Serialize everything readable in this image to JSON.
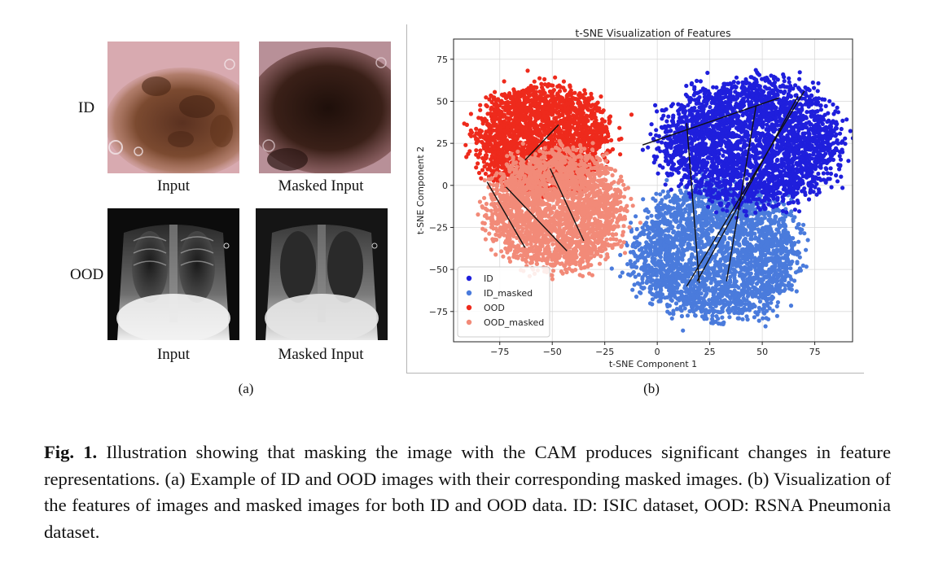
{
  "panel_a": {
    "row_labels": {
      "id": "ID",
      "ood": "OOD"
    },
    "image_labels": {
      "input": "Input",
      "masked": "Masked Input"
    },
    "caption": "(a)"
  },
  "panel_b": {
    "caption": "(b)"
  },
  "figure_caption": {
    "label": "Fig. 1.",
    "text": "Illustration showing that masking the image with the CAM produces significant changes in feature representations. (a) Example of ID and OOD images with their corresponding masked images. (b) Visualization of the features of images and masked images for both ID and OOD data. ID: ISIC dataset, OOD: RSNA Pneumonia dataset."
  },
  "chart_data": {
    "type": "scatter",
    "title": "t-SNE Visualization of Features",
    "xlabel": "t-SNE Component 1",
    "ylabel": "t-SNE Component 2",
    "xlim": [
      -97,
      93
    ],
    "ylim": [
      -93,
      87
    ],
    "xticks": [
      -75,
      -50,
      -25,
      0,
      25,
      50,
      75
    ],
    "yticks": [
      -75,
      -50,
      -25,
      0,
      25,
      50,
      75
    ],
    "grid": true,
    "legend_position": "lower-left",
    "series": [
      {
        "name": "ID",
        "color": "#1f1fdc"
      },
      {
        "name": "ID_masked",
        "color": "#4a7bdc"
      },
      {
        "name": "OOD",
        "color": "#ee2a1c"
      },
      {
        "name": "OOD_masked",
        "color": "#f28a78"
      }
    ],
    "clusters": [
      {
        "series": "ID_masked",
        "cx": 28,
        "cy": -40,
        "rx": 42,
        "ry": 42,
        "n": 2600
      },
      {
        "series": "ID",
        "cx": 45,
        "cy": 25,
        "rx": 45,
        "ry": 40,
        "n": 2800
      },
      {
        "series": "OOD",
        "cx": -55,
        "cy": 28,
        "rx": 33,
        "ry": 33,
        "n": 2200
      },
      {
        "series": "OOD_masked",
        "cx": -48,
        "cy": -15,
        "rx": 34,
        "ry": 38,
        "n": 2400
      }
    ],
    "connector_lines": [
      {
        "x1": -63,
        "y1": 15,
        "x2": -47,
        "y2": 36
      },
      {
        "x1": -81,
        "y1": 2,
        "x2": -63,
        "y2": -37
      },
      {
        "x1": -72,
        "y1": -1,
        "x2": -43,
        "y2": -39
      },
      {
        "x1": -51,
        "y1": 10,
        "x2": -35,
        "y2": -33
      },
      {
        "x1": -7,
        "y1": 24,
        "x2": 58,
        "y2": 52
      },
      {
        "x1": 14,
        "y1": 37,
        "x2": 20,
        "y2": -58
      },
      {
        "x1": 70,
        "y1": 56,
        "x2": 14,
        "y2": -60
      },
      {
        "x1": 67,
        "y1": 53,
        "x2": 19,
        "y2": -57
      },
      {
        "x1": 47,
        "y1": 47,
        "x2": 33,
        "y2": -57
      }
    ]
  }
}
